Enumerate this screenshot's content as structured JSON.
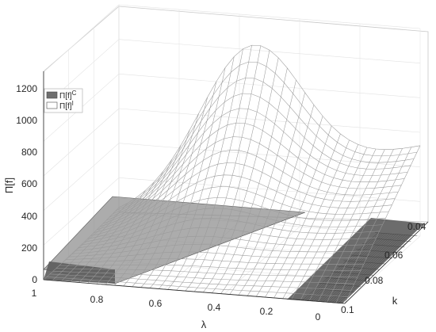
{
  "chart_data": {
    "type": "surface3d",
    "zlabel": "Π[f]",
    "xlabel": "λ",
    "ylabel": "k",
    "z_ticks": [
      "0",
      "200",
      "400",
      "600",
      "800",
      "1000",
      "1200"
    ],
    "lambda_ticks": [
      "1",
      "0.8",
      "0.6",
      "0.4",
      "0.2",
      "0"
    ],
    "k_ticks": [
      "0.04",
      "0.06",
      "0.08",
      "0.1"
    ],
    "zlim": [
      0,
      1200
    ],
    "lambda_range": [
      0,
      1
    ],
    "k_range": [
      0.04,
      0.1
    ],
    "grid": true,
    "legend": {
      "placement": "top-left",
      "entries": [
        {
          "base": "Π[f]",
          "sup": "C",
          "color": "#6e6e6e"
        },
        {
          "base": "Π[f]",
          "sup": "I",
          "color": "#ffffff"
        }
      ]
    },
    "series": [
      {
        "name": "Π[f]^I",
        "surface": "mesh",
        "peak_value": 1200,
        "peak_at": {
          "lambda": 0.55,
          "k": 0.04
        },
        "value_at_lambda0_k004": 520,
        "value_at_lambda1_k01": 0
      },
      {
        "name": "Π[f]^C",
        "surface": "shaded",
        "value_range": [
          0,
          400
        ]
      }
    ]
  }
}
